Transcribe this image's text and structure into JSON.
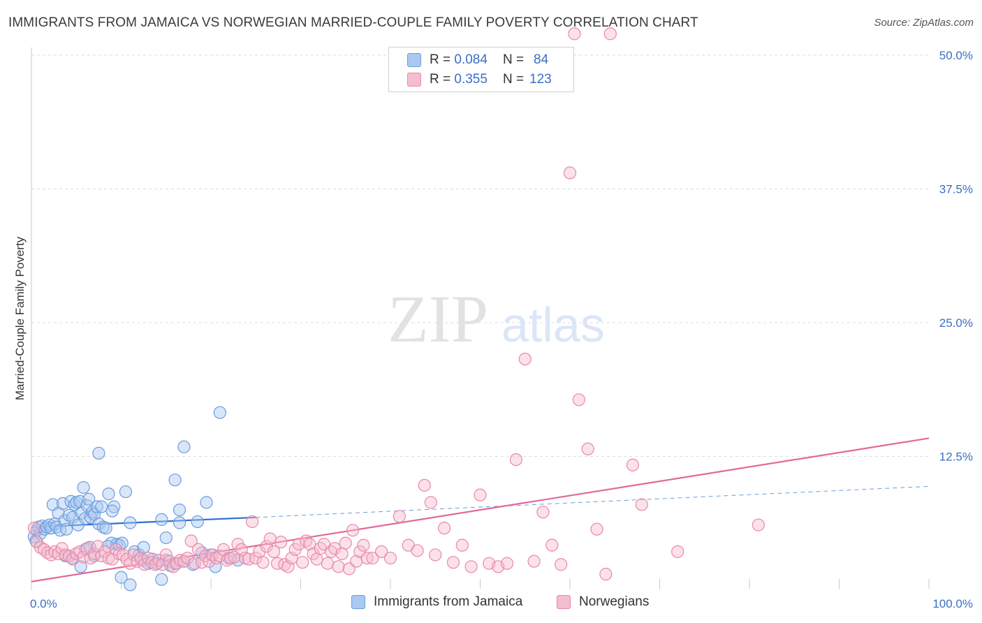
{
  "header": {
    "title": "IMMIGRANTS FROM JAMAICA VS NORWEGIAN MARRIED-COUPLE FAMILY POVERTY CORRELATION CHART",
    "source": "Source: ZipAtlas.com"
  },
  "watermark": {
    "zip": "ZIP",
    "atlas": "atlas"
  },
  "legend": {
    "rows": [
      {
        "r_label": "R =",
        "r_value": "0.084",
        "n_label": "N =",
        "n_value": "84"
      },
      {
        "r_label": "R =",
        "r_value": "0.355",
        "n_label": "N =",
        "n_value": "123"
      }
    ]
  },
  "bottom_legend": {
    "items": [
      {
        "label": "Immigrants from Jamaica"
      },
      {
        "label": "Norwegians"
      }
    ]
  },
  "colors": {
    "blue_fill": "#aac8f0",
    "blue_stroke": "#6a9de0",
    "blue_line": "#2f6fcf",
    "pink_fill": "#f6bcd0",
    "pink_stroke": "#e889a8",
    "pink_line": "#e06a97",
    "grid": "#dddddd",
    "tick_text": "#3a6fc4"
  },
  "chart_data": {
    "type": "scatter",
    "title": "IMMIGRANTS FROM JAMAICA VS NORWEGIAN MARRIED-COUPLE FAMILY POVERTY CORRELATION CHART",
    "xlabel": "",
    "ylabel": "Married-Couple Family Poverty",
    "xlim": [
      0,
      100
    ],
    "ylim": [
      0,
      52
    ],
    "x_tick_labels": [
      "0.0%",
      "100.0%"
    ],
    "y_ticks": [
      12.5,
      25.0,
      37.5,
      50.0
    ],
    "y_tick_labels": [
      "12.5%",
      "25.0%",
      "37.5%",
      "50.0%"
    ],
    "grid": true,
    "legend_position": "top-center",
    "series": [
      {
        "name": "Immigrants from Jamaica",
        "R": 0.084,
        "N": 84,
        "trend": {
          "x0": 0,
          "y0": 5.9,
          "x1": 25,
          "y1": 6.8,
          "dash_to_x": 100,
          "dash_to_y": 9.7
        },
        "points": [
          [
            0.3,
            5.0
          ],
          [
            0.5,
            4.6
          ],
          [
            0.6,
            5.6
          ],
          [
            0.8,
            5.9
          ],
          [
            1.0,
            5.3
          ],
          [
            1.2,
            6.0
          ],
          [
            1.5,
            5.7
          ],
          [
            1.7,
            5.9
          ],
          [
            2.0,
            6.1
          ],
          [
            2.2,
            5.8
          ],
          [
            2.4,
            8.0
          ],
          [
            2.6,
            6.2
          ],
          [
            2.8,
            5.9
          ],
          [
            3.0,
            7.2
          ],
          [
            3.2,
            5.6
          ],
          [
            3.5,
            8.1
          ],
          [
            3.7,
            6.5
          ],
          [
            3.9,
            5.7
          ],
          [
            4.2,
            7.0
          ],
          [
            4.4,
            8.3
          ],
          [
            4.6,
            6.8
          ],
          [
            4.8,
            8.0
          ],
          [
            5.0,
            8.2
          ],
          [
            5.2,
            6.1
          ],
          [
            5.4,
            8.3
          ],
          [
            5.6,
            7.2
          ],
          [
            5.8,
            9.6
          ],
          [
            6.0,
            6.7
          ],
          [
            6.2,
            7.9
          ],
          [
            6.4,
            8.5
          ],
          [
            6.6,
            6.8
          ],
          [
            6.8,
            7.3
          ],
          [
            7.0,
            7.1
          ],
          [
            7.3,
            7.8
          ],
          [
            7.5,
            6.2
          ],
          [
            7.8,
            7.8
          ],
          [
            8.0,
            5.9
          ],
          [
            8.3,
            5.8
          ],
          [
            8.6,
            9.0
          ],
          [
            8.9,
            4.4
          ],
          [
            9.2,
            7.8
          ],
          [
            9.5,
            4.3
          ],
          [
            9.8,
            4.2
          ],
          [
            10.1,
            4.4
          ],
          [
            10.5,
            9.2
          ],
          [
            11.0,
            6.3
          ],
          [
            11.5,
            3.6
          ],
          [
            12.0,
            3.3
          ],
          [
            12.5,
            2.8
          ],
          [
            13.0,
            2.5
          ],
          [
            13.5,
            2.9
          ],
          [
            14.0,
            2.5
          ],
          [
            14.5,
            6.6
          ],
          [
            15.0,
            2.8
          ],
          [
            15.5,
            2.3
          ],
          [
            16.0,
            2.5
          ],
          [
            16.5,
            6.3
          ],
          [
            17.0,
            2.7
          ],
          [
            18.0,
            2.4
          ],
          [
            19.0,
            3.5
          ],
          [
            19.5,
            8.2
          ],
          [
            20.0,
            3.3
          ],
          [
            20.5,
            2.2
          ],
          [
            21.0,
            16.6
          ],
          [
            22.0,
            3.0
          ],
          [
            23.0,
            2.8
          ],
          [
            10.0,
            1.2
          ],
          [
            11.0,
            0.5
          ],
          [
            14.5,
            1.0
          ],
          [
            7.5,
            12.8
          ],
          [
            17.0,
            13.4
          ],
          [
            16.0,
            10.3
          ],
          [
            9.0,
            7.4
          ],
          [
            5.5,
            2.2
          ],
          [
            4.5,
            3.0
          ],
          [
            3.8,
            3.2
          ],
          [
            6.0,
            3.8
          ],
          [
            6.5,
            4.0
          ],
          [
            7.0,
            3.2
          ],
          [
            8.5,
            4.1
          ],
          [
            15.0,
            4.9
          ],
          [
            16.5,
            7.5
          ],
          [
            12.5,
            4.0
          ],
          [
            18.5,
            6.4
          ]
        ]
      },
      {
        "name": "Norwegians",
        "R": 0.355,
        "N": 123,
        "trend": {
          "x0": 0,
          "y0": 0.8,
          "x1": 100,
          "y1": 14.2
        },
        "points": [
          [
            0.3,
            5.8
          ],
          [
            0.6,
            4.5
          ],
          [
            1.0,
            4.0
          ],
          [
            1.4,
            3.8
          ],
          [
            1.8,
            3.5
          ],
          [
            2.2,
            3.3
          ],
          [
            2.6,
            3.6
          ],
          [
            3.0,
            3.4
          ],
          [
            3.4,
            3.9
          ],
          [
            3.8,
            3.3
          ],
          [
            4.2,
            3.2
          ],
          [
            4.6,
            2.9
          ],
          [
            5.0,
            3.4
          ],
          [
            5.4,
            3.6
          ],
          [
            5.8,
            3.1
          ],
          [
            6.2,
            3.9
          ],
          [
            6.6,
            3.0
          ],
          [
            7.0,
            3.4
          ],
          [
            7.4,
            4.1
          ],
          [
            7.8,
            3.2
          ],
          [
            8.2,
            3.6
          ],
          [
            8.6,
            3.0
          ],
          [
            9.0,
            2.9
          ],
          [
            9.4,
            3.8
          ],
          [
            9.8,
            3.4
          ],
          [
            10.2,
            3.3
          ],
          [
            10.6,
            2.9
          ],
          [
            11.0,
            2.5
          ],
          [
            11.4,
            3.3
          ],
          [
            11.8,
            2.7
          ],
          [
            12.2,
            3.0
          ],
          [
            12.6,
            2.4
          ],
          [
            13.0,
            3.0
          ],
          [
            13.4,
            2.6
          ],
          [
            13.8,
            2.4
          ],
          [
            14.2,
            2.8
          ],
          [
            14.6,
            2.4
          ],
          [
            15.0,
            3.3
          ],
          [
            15.4,
            2.7
          ],
          [
            15.8,
            2.2
          ],
          [
            16.2,
            2.5
          ],
          [
            16.6,
            2.8
          ],
          [
            17.0,
            2.7
          ],
          [
            17.4,
            3.0
          ],
          [
            17.8,
            4.6
          ],
          [
            18.2,
            2.5
          ],
          [
            18.6,
            3.8
          ],
          [
            19.0,
            2.6
          ],
          [
            19.4,
            3.2
          ],
          [
            19.8,
            2.7
          ],
          [
            20.2,
            3.3
          ],
          [
            20.6,
            3.0
          ],
          [
            21.0,
            3.2
          ],
          [
            21.4,
            3.8
          ],
          [
            21.8,
            2.8
          ],
          [
            22.2,
            3.0
          ],
          [
            22.6,
            3.1
          ],
          [
            23.0,
            4.3
          ],
          [
            23.4,
            3.8
          ],
          [
            23.8,
            3.0
          ],
          [
            24.2,
            2.9
          ],
          [
            24.6,
            6.4
          ],
          [
            25.0,
            3.0
          ],
          [
            25.4,
            3.6
          ],
          [
            25.8,
            2.6
          ],
          [
            26.2,
            4.1
          ],
          [
            26.6,
            4.8
          ],
          [
            27.0,
            3.6
          ],
          [
            27.4,
            2.5
          ],
          [
            27.8,
            4.5
          ],
          [
            28.2,
            2.4
          ],
          [
            28.6,
            2.2
          ],
          [
            29.0,
            3.0
          ],
          [
            29.4,
            3.8
          ],
          [
            29.8,
            4.3
          ],
          [
            30.2,
            2.6
          ],
          [
            30.6,
            4.6
          ],
          [
            31.0,
            4.3
          ],
          [
            31.4,
            3.4
          ],
          [
            31.8,
            2.9
          ],
          [
            32.2,
            3.9
          ],
          [
            32.6,
            4.3
          ],
          [
            33.0,
            2.5
          ],
          [
            33.4,
            3.6
          ],
          [
            33.8,
            3.9
          ],
          [
            34.2,
            2.2
          ],
          [
            34.6,
            3.4
          ],
          [
            35.0,
            4.4
          ],
          [
            35.4,
            2.0
          ],
          [
            35.8,
            5.6
          ],
          [
            36.2,
            2.7
          ],
          [
            36.6,
            3.6
          ],
          [
            37.0,
            4.2
          ],
          [
            37.4,
            3.0
          ],
          [
            38.0,
            3.0
          ],
          [
            39.0,
            3.6
          ],
          [
            40.0,
            3.0
          ],
          [
            41.0,
            6.9
          ],
          [
            42.0,
            4.2
          ],
          [
            43.0,
            3.7
          ],
          [
            43.8,
            9.8
          ],
          [
            44.5,
            8.2
          ],
          [
            45.0,
            3.3
          ],
          [
            46.0,
            5.8
          ],
          [
            47.0,
            2.6
          ],
          [
            48.0,
            4.2
          ],
          [
            49.0,
            2.2
          ],
          [
            50.0,
            8.9
          ],
          [
            51.0,
            2.5
          ],
          [
            52.0,
            2.2
          ],
          [
            53.0,
            2.5
          ],
          [
            54.0,
            12.2
          ],
          [
            55.0,
            21.6
          ],
          [
            56.0,
            2.7
          ],
          [
            57.0,
            7.3
          ],
          [
            58.0,
            4.2
          ],
          [
            59.0,
            2.4
          ],
          [
            60.0,
            39.0
          ],
          [
            61.0,
            17.8
          ],
          [
            62.0,
            13.2
          ],
          [
            63.0,
            5.7
          ],
          [
            64.0,
            1.5
          ],
          [
            67.0,
            11.7
          ],
          [
            68.0,
            8.0
          ],
          [
            72.0,
            3.6
          ],
          [
            81.0,
            6.1
          ],
          [
            64.5,
            52.0
          ],
          [
            60.5,
            52.0
          ]
        ]
      }
    ]
  }
}
